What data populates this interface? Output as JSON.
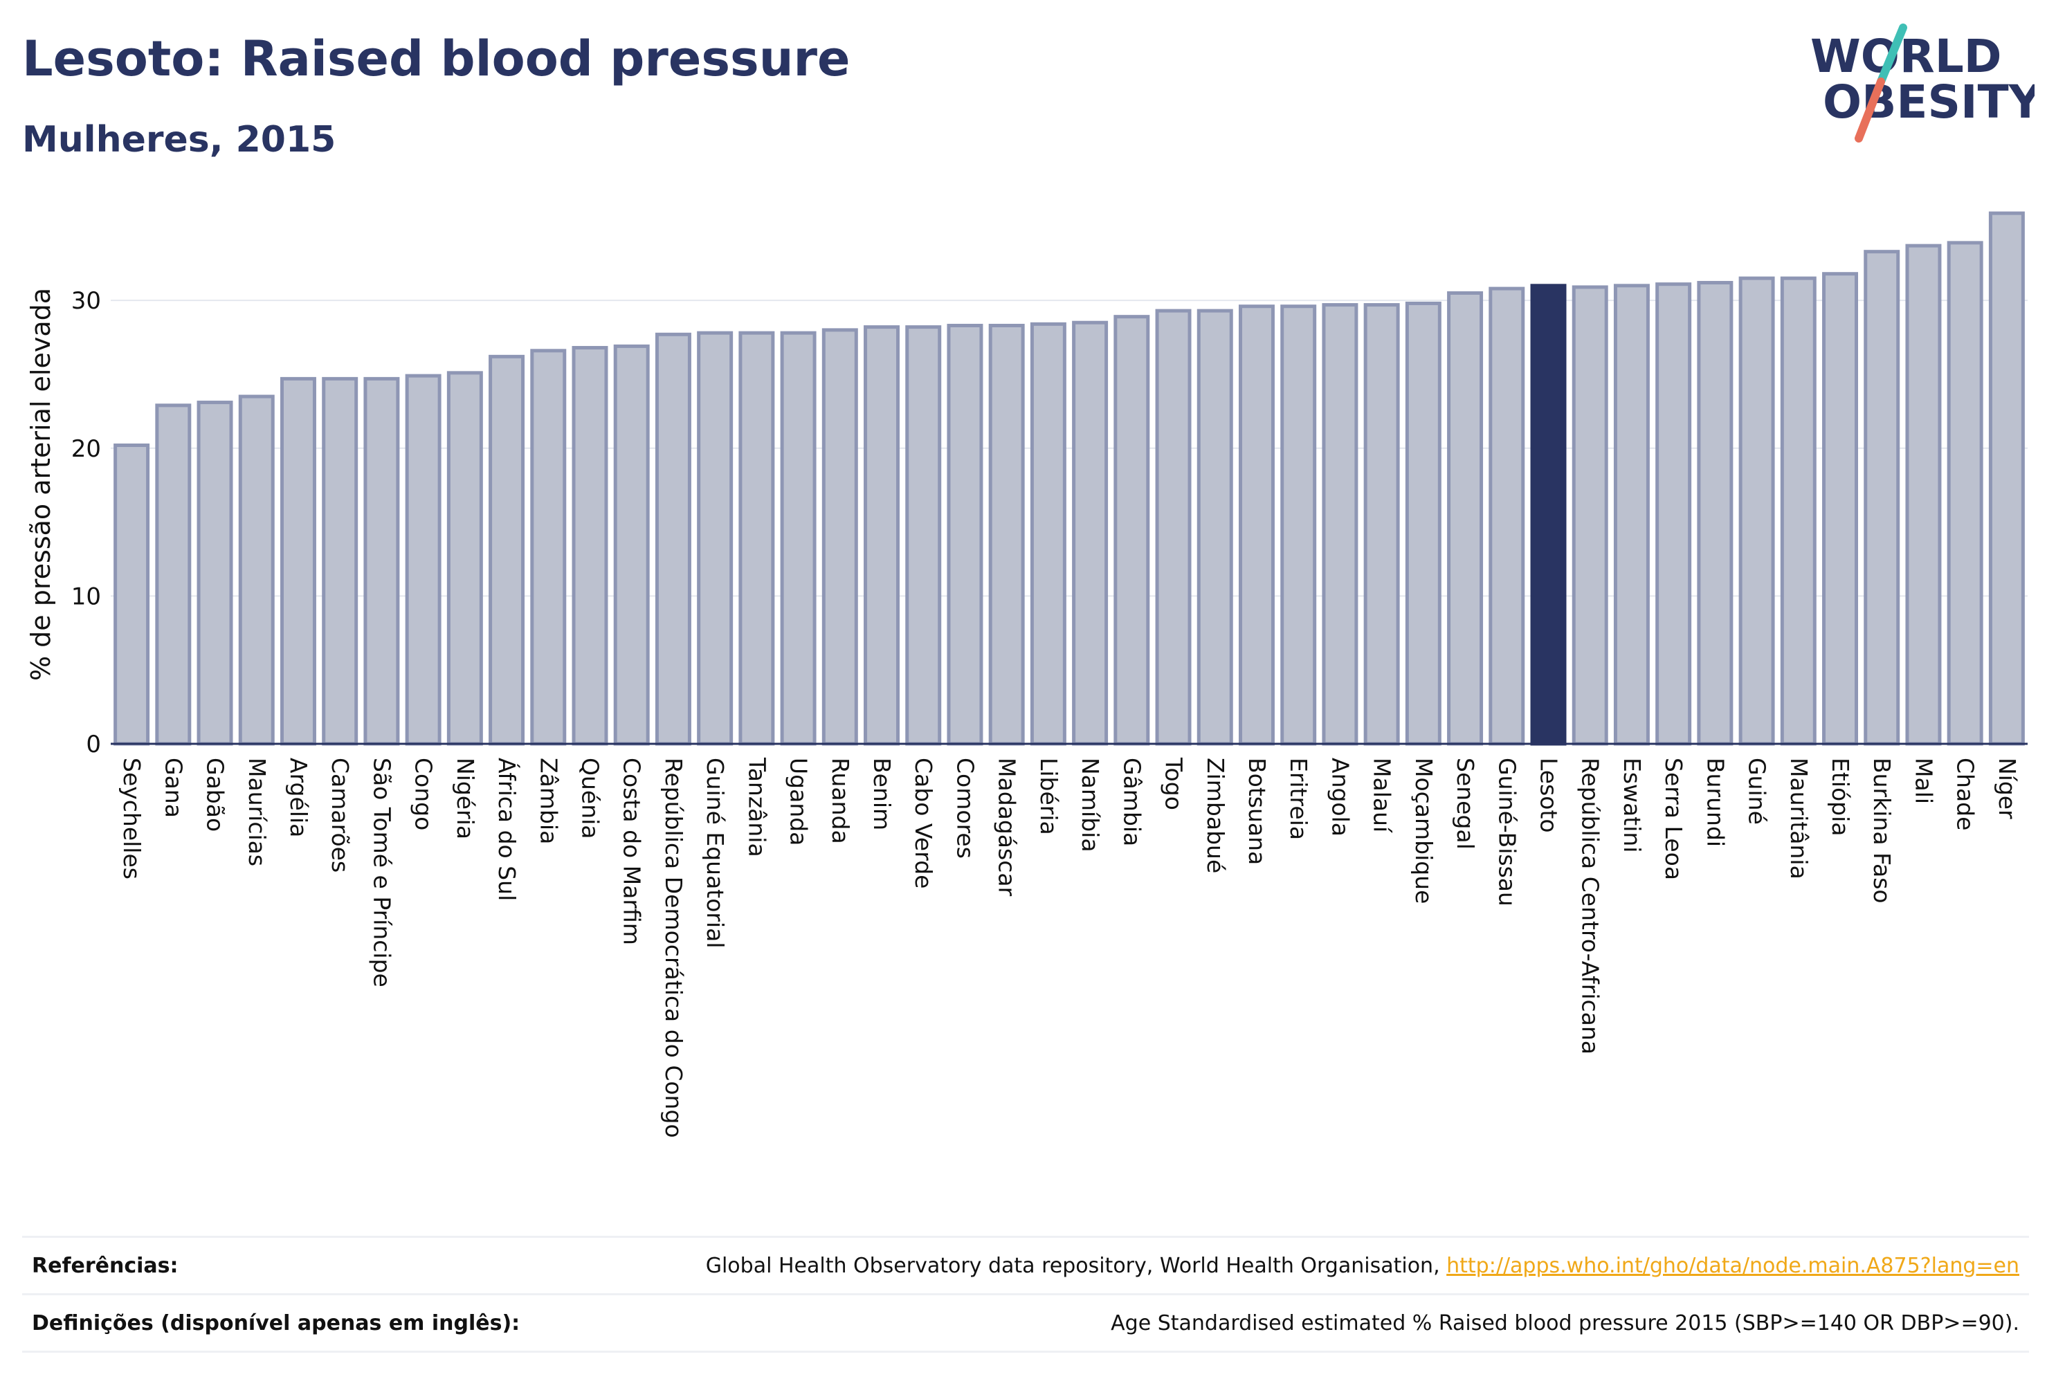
{
  "header": {
    "title": "Lesoto: Raised blood pressure",
    "subtitle": "Mulheres, 2015"
  },
  "logo": {
    "line1": "WORLD",
    "line2": "OBESITY"
  },
  "colors": {
    "bar": "#bcc1cf",
    "bar_stroke": "#8e96b4",
    "highlight": "#293462",
    "title": "#293462",
    "link": "#f0a818",
    "logo_slash_teal": "#3fbfb5",
    "logo_slash_red": "#e8705a"
  },
  "chart_data": {
    "type": "bar",
    "ylabel": "% de pressão arterial elevada",
    "xlabel": "",
    "ylim": [
      0,
      36
    ],
    "yticks": [
      0,
      10,
      20,
      30
    ],
    "grid": true,
    "highlight": "Lesoto",
    "categories": [
      "Seychelles",
      "Gana",
      "Gabão",
      "Maurícias",
      "Argélia",
      "Camarões",
      "São Tomé e Príncipe",
      "Congo",
      "Nigéria",
      "África do Sul",
      "Zâmbia",
      "Quénia",
      "Costa do Marfim",
      "República Democrática do Congo",
      "Guiné Equatorial",
      "Tanzânia",
      "Uganda",
      "Ruanda",
      "Benim",
      "Cabo Verde",
      "Comores",
      "Madagáscar",
      "Libéria",
      "Namíbia",
      "Gâmbia",
      "Togo",
      "Zimbabué",
      "Botsuana",
      "Eritreia",
      "Angola",
      "Malauí",
      "Moçambique",
      "Senegal",
      "Guiné-Bissau",
      "Lesoto",
      "República Centro-Africana",
      "Eswatini",
      "Serra Leoa",
      "Burundi",
      "Guiné",
      "Mauritânia",
      "Etiópia",
      "Burkina Faso",
      "Mali",
      "Chade",
      "Níger"
    ],
    "values": [
      20.2,
      22.9,
      23.1,
      23.5,
      24.7,
      24.7,
      24.7,
      24.9,
      25.1,
      26.2,
      26.6,
      26.8,
      26.9,
      27.7,
      27.8,
      27.8,
      27.8,
      28.0,
      28.2,
      28.2,
      28.3,
      28.3,
      28.4,
      28.5,
      28.9,
      29.3,
      29.3,
      29.6,
      29.6,
      29.7,
      29.7,
      29.8,
      30.5,
      30.8,
      31.0,
      30.9,
      31.0,
      31.1,
      31.2,
      31.5,
      31.5,
      31.8,
      33.3,
      33.7,
      33.9,
      35.9
    ]
  },
  "footer": {
    "references_label": "Referências:",
    "references_text": "Global Health Observatory data repository, World Health Organisation, ",
    "references_link": "http://apps.who.int/gho/data/node.main.A875?lang=en",
    "definitions_label": "Definições (disponível apenas em inglês):",
    "definitions_text": "Age Standardised estimated % Raised blood pressure 2015 (SBP>=140 OR DBP>=90)."
  }
}
